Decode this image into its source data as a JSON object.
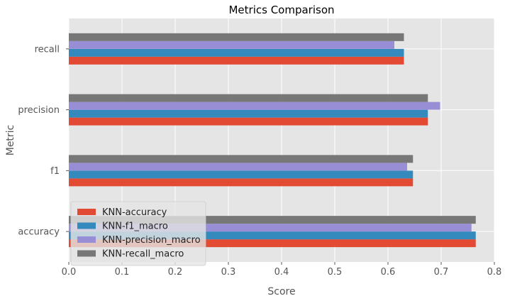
{
  "chart_data": {
    "type": "bar",
    "orientation": "horizontal",
    "title": "Metrics Comparison",
    "xlabel": "Score",
    "ylabel": "Metric",
    "categories": [
      "accuracy",
      "f1",
      "precision",
      "recall"
    ],
    "xlim": [
      0.0,
      0.8
    ],
    "xticks": [
      "0.0",
      "0.1",
      "0.2",
      "0.3",
      "0.4",
      "0.5",
      "0.6",
      "0.7",
      "0.8"
    ],
    "grid": true,
    "legend_position": "lower-left",
    "series": [
      {
        "name": "KNN-accuracy",
        "color": "#E24A33",
        "values": [
          0.765,
          0.647,
          0.675,
          0.63
        ]
      },
      {
        "name": "KNN-f1_macro",
        "color": "#348ABD",
        "values": [
          0.765,
          0.647,
          0.675,
          0.63
        ]
      },
      {
        "name": "KNN-precision_macro",
        "color": "#988ED5",
        "values": [
          0.757,
          0.636,
          0.698,
          0.612
        ]
      },
      {
        "name": "KNN-recall_macro",
        "color": "#777777",
        "values": [
          0.765,
          0.647,
          0.675,
          0.63
        ]
      }
    ]
  }
}
